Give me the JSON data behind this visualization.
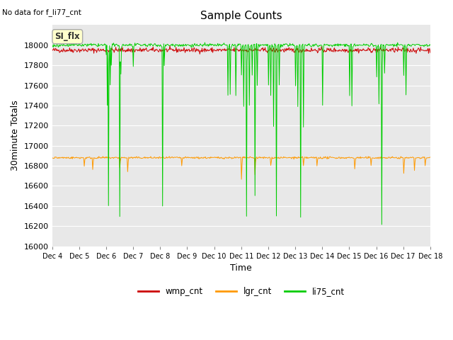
{
  "title": "Sample Counts",
  "no_data_note": "No data for f_li77_cnt",
  "ylabel": "30minute Totals",
  "xlabel": "Time",
  "ylim": [
    16000,
    18200
  ],
  "yticks": [
    16000,
    16200,
    16400,
    16600,
    16800,
    17000,
    17200,
    17400,
    17600,
    17800,
    18000
  ],
  "bg_color": "#e8e8e8",
  "wmp_base": 17950,
  "lgr_base": 16880,
  "li75_base": 18000,
  "n_points": 672,
  "legend_labels": [
    "wmp_cnt",
    "lgr_cnt",
    "li75_cnt"
  ],
  "legend_colors": [
    "#cc0000",
    "#ff9900",
    "#00cc00"
  ],
  "si_flx_label": "SI_flx",
  "x_tick_labels": [
    "Dec 4",
    "Dec 5",
    "Dec 6",
    "Dec 7",
    "Dec 8",
    "Dec 9",
    "Dec 10",
    "Dec 11",
    "Dec 12",
    "Dec 13",
    "Dec 14",
    "Dec 15",
    "Dec 16",
    "Dec 17",
    "Dec 18"
  ],
  "title_fontsize": 11,
  "axis_label_fontsize": 9,
  "tick_fontsize": 8
}
